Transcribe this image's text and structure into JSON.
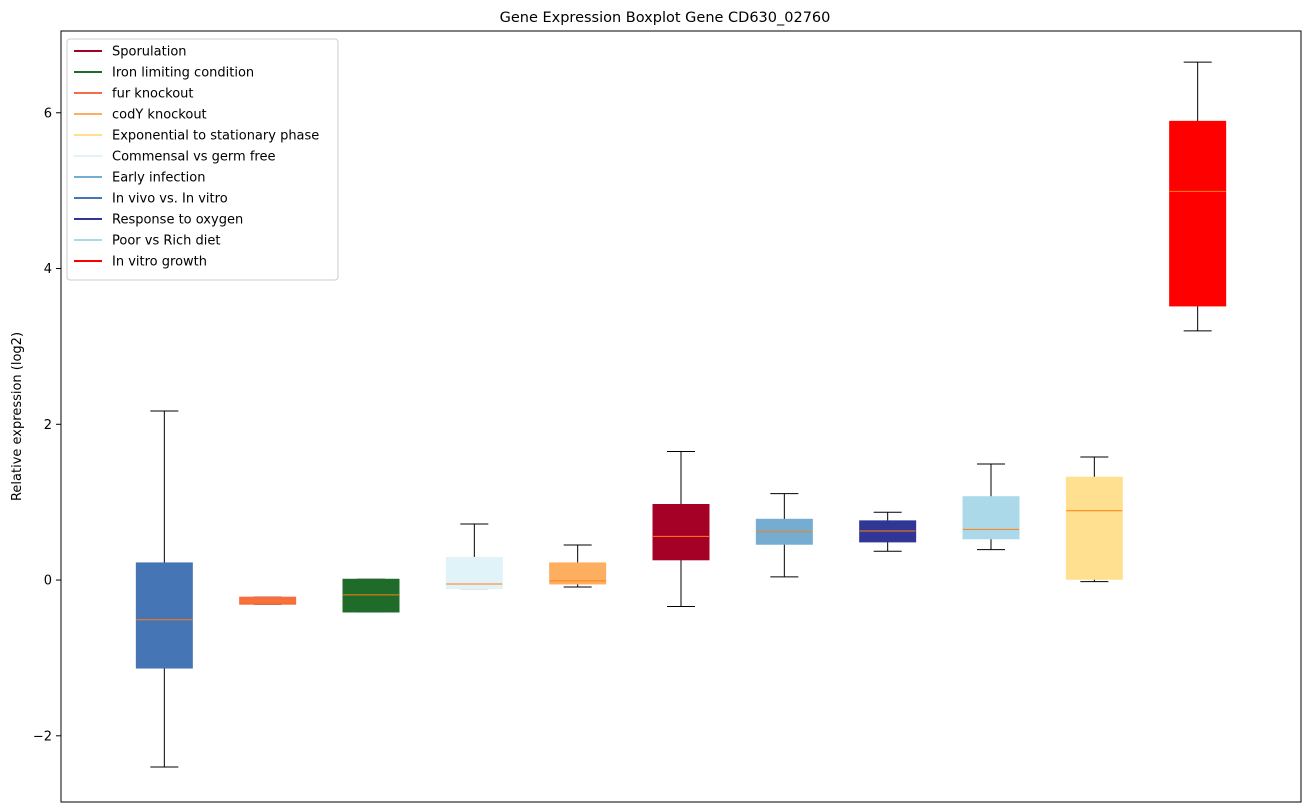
{
  "chart_data": {
    "type": "boxplot",
    "title": "Gene Expression Boxplot Gene CD630_02760",
    "xlabel": "",
    "ylabel": "Relative expression (log2)",
    "ylim": [
      -2.85,
      7.05
    ],
    "yticks": [
      -2,
      0,
      2,
      4,
      6
    ],
    "grid": false,
    "legend_position": "top-left",
    "median_color": "#ff7f0e",
    "legend": [
      {
        "label": "Sporulation",
        "color": "#a50026"
      },
      {
        "label": "Iron limiting condition",
        "color": "#1f6b2a"
      },
      {
        "label": "fur knockout",
        "color": "#f46d43"
      },
      {
        "label": "codY knockout",
        "color": "#fdae61"
      },
      {
        "label": "Exponential to stationary phase",
        "color": "#fee090"
      },
      {
        "label": "Commensal vs germ free",
        "color": "#e0f3f8"
      },
      {
        "label": "Early infection",
        "color": "#74add1"
      },
      {
        "label": "In vivo vs. In vitro",
        "color": "#4575b4"
      },
      {
        "label": "Response to oxygen",
        "color": "#313695"
      },
      {
        "label": "Poor vs Rich diet",
        "color": "#abd9e9"
      },
      {
        "label": "In vitro growth",
        "color": "#ff0000"
      }
    ],
    "boxes": [
      {
        "color": "#4575b4",
        "whisker_low": -2.4,
        "q1": -1.13,
        "median": -0.51,
        "q3": 0.22,
        "whisker_high": 2.17
      },
      {
        "color": "#f46d43",
        "whisker_low": -0.31,
        "q1": -0.31,
        "median": -0.27,
        "q3": -0.22,
        "whisker_high": -0.22
      },
      {
        "color": "#1f6b2a",
        "whisker_low": -0.41,
        "q1": -0.41,
        "median": -0.19,
        "q3": 0.01,
        "whisker_high": 0.01
      },
      {
        "color": "#e0f3f8",
        "whisker_low": -0.11,
        "q1": -0.11,
        "median": -0.05,
        "q3": 0.29,
        "whisker_high": 0.72
      },
      {
        "color": "#fdae61",
        "whisker_low": -0.09,
        "q1": -0.05,
        "median": -0.01,
        "q3": 0.22,
        "whisker_high": 0.45
      },
      {
        "color": "#a50026",
        "whisker_low": -0.34,
        "q1": 0.26,
        "median": 0.56,
        "q3": 0.97,
        "whisker_high": 1.65
      },
      {
        "color": "#74add1",
        "whisker_low": 0.04,
        "q1": 0.46,
        "median": 0.62,
        "q3": 0.78,
        "whisker_high": 1.11
      },
      {
        "color": "#313695",
        "whisker_low": 0.37,
        "q1": 0.49,
        "median": 0.63,
        "q3": 0.76,
        "whisker_high": 0.87
      },
      {
        "color": "#abd9e9",
        "whisker_low": 0.39,
        "q1": 0.53,
        "median": 0.65,
        "q3": 1.07,
        "whisker_high": 1.49
      },
      {
        "color": "#fee090",
        "whisker_low": -0.02,
        "q1": 0.01,
        "median": 0.89,
        "q3": 1.32,
        "whisker_high": 1.58
      },
      {
        "color": "#ff0000",
        "whisker_low": 3.2,
        "q1": 3.52,
        "median": 4.99,
        "q3": 5.89,
        "whisker_high": 6.65
      }
    ]
  }
}
